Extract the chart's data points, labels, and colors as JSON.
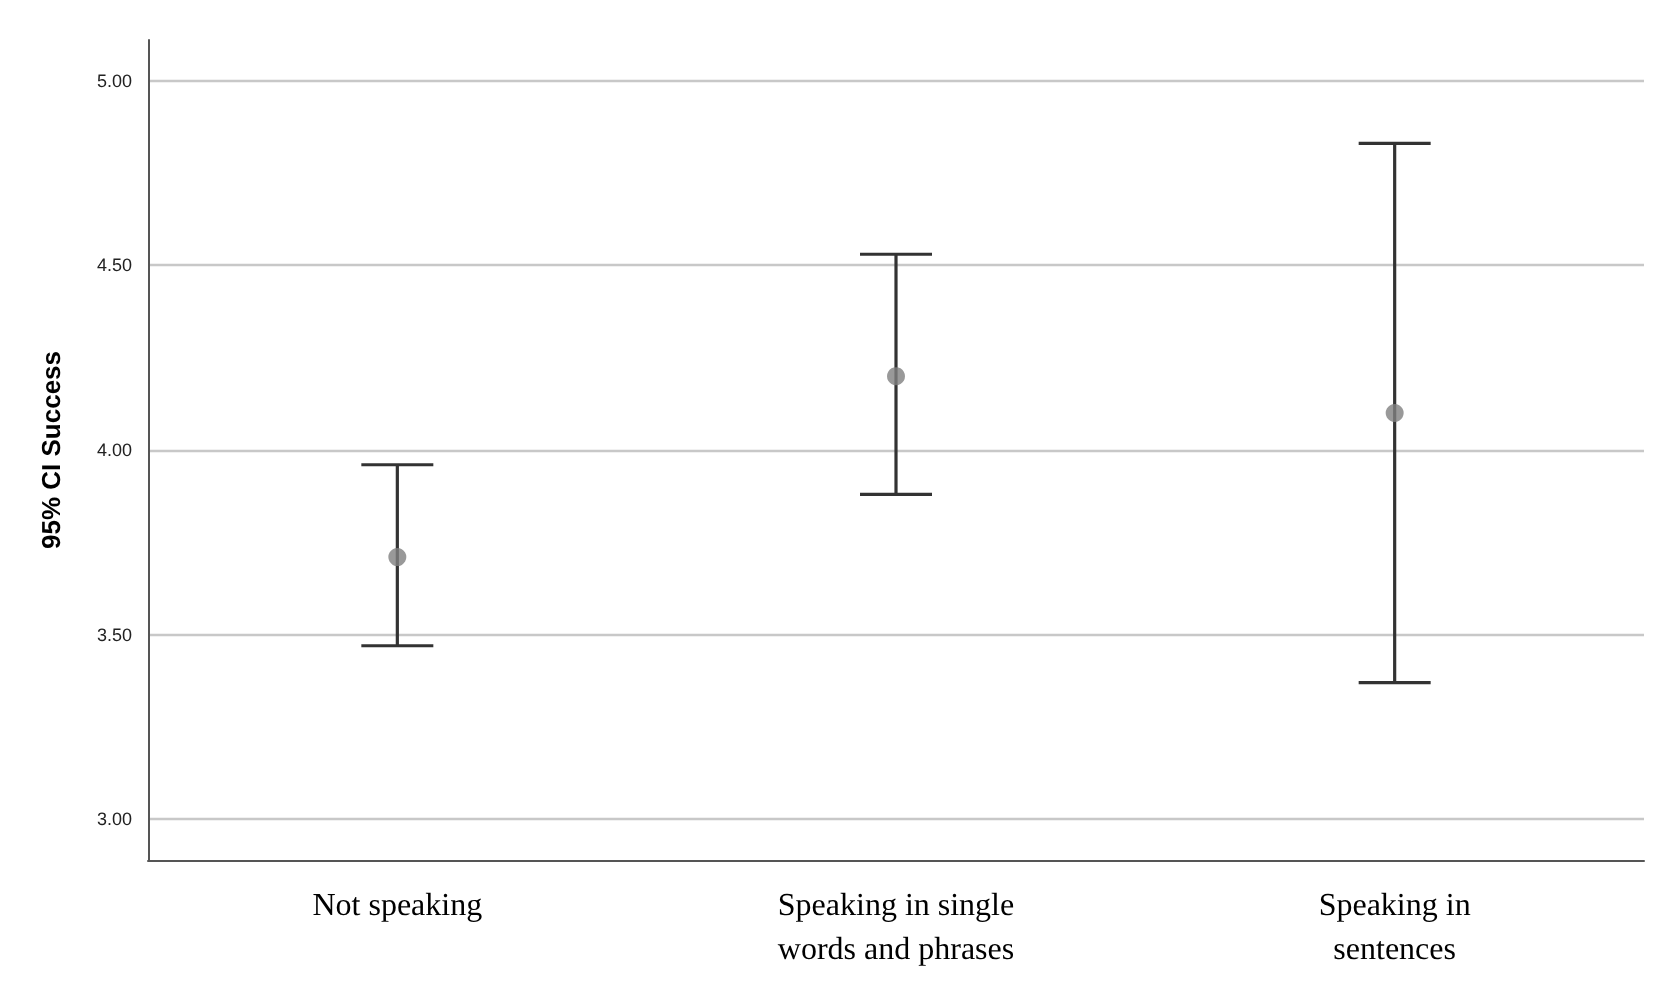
{
  "chart_data": {
    "type": "scatter",
    "ylabel": "95% CI Success",
    "categories": [
      "Not speaking",
      "Speaking in single\nwords and phrases",
      "Speaking in\nsentences"
    ],
    "series": [
      {
        "color": "#7f7f7f",
        "values": [
          3.71,
          4.2,
          4.1
        ],
        "errors": [
          [
            3.47,
            3.96
          ],
          [
            3.88,
            4.53
          ],
          [
            3.37,
            4.83
          ]
        ]
      }
    ],
    "ylim": [
      2.89,
      5.11
    ],
    "yticks": [
      {
        "value": 3,
        "label": "3.00"
      },
      {
        "value": 3.5,
        "label": "3.50"
      },
      {
        "value": 4,
        "label": "4.00"
      },
      {
        "value": 4.5,
        "label": "4.50"
      },
      {
        "value": 5,
        "label": "5.00"
      }
    ],
    "grid": "y",
    "marker": "circle"
  }
}
